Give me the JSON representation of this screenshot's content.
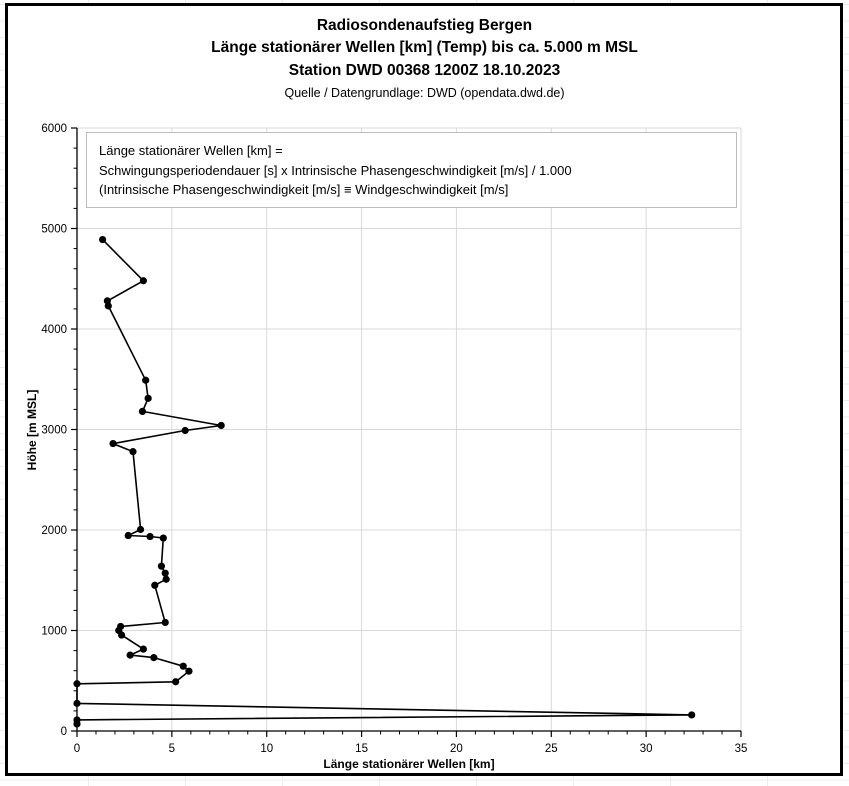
{
  "header": {
    "title_line1": "Radiosondenaufstieg Bergen",
    "title_line2": "Länge stationärer Wellen [km] (Temp) bis ca. 5.000 m MSL",
    "title_line3": "Station DWD 00368 1200Z 18.10.2023",
    "source_line": "Quelle / Datengrundlage: DWD (opendata.dwd.de)"
  },
  "annotation_box": {
    "line1": "Länge stationärer Wellen [km] =",
    "line2": "Schwingungsperiodendauer [s] x Intrinsische Phasengeschwindigkeit [m/s]  / 1.000",
    "line3": "(Intrinsische Phasengeschwindigkeit [m/s] ≡ Windgeschwindigkeit [m/s]"
  },
  "chart_data": {
    "type": "line",
    "title": "Radiosondenaufstieg Bergen — Länge stationärer Wellen [km] (Temp) bis ca. 5.000 m MSL",
    "xlabel": "Länge stationärer Wellen [km]",
    "ylabel": "Höhe [m MSL]",
    "xlim": [
      0,
      35
    ],
    "ylim": [
      0,
      6000
    ],
    "xticks": [
      0,
      5,
      10,
      15,
      20,
      25,
      30,
      35
    ],
    "yticks": [
      0,
      1000,
      2000,
      3000,
      4000,
      5000,
      6000
    ],
    "x_minor_step": 1,
    "y_minor_step": 200,
    "grid": "major",
    "legend_position": "none",
    "marker": "circle",
    "colors": {
      "line": "#000000",
      "marker": "#000000",
      "grid": "#d9d9d9",
      "axis": "#000000"
    },
    "points": [
      [
        0,
        70
      ],
      [
        0,
        110
      ],
      [
        32.4,
        160
      ],
      [
        0,
        275
      ],
      [
        0,
        470
      ],
      [
        5.2,
        490
      ],
      [
        5.9,
        595
      ],
      [
        5.6,
        645
      ],
      [
        4.05,
        730
      ],
      [
        2.8,
        755
      ],
      [
        3.5,
        815
      ],
      [
        2.35,
        955
      ],
      [
        2.2,
        1000
      ],
      [
        2.3,
        1040
      ],
      [
        4.65,
        1080
      ],
      [
        4.1,
        1450
      ],
      [
        4.7,
        1510
      ],
      [
        4.65,
        1570
      ],
      [
        4.45,
        1640
      ],
      [
        4.55,
        1920
      ],
      [
        3.85,
        1935
      ],
      [
        2.7,
        1945
      ],
      [
        3.35,
        2005
      ],
      [
        2.95,
        2780
      ],
      [
        1.9,
        2860
      ],
      [
        5.7,
        2990
      ],
      [
        7.6,
        3040
      ],
      [
        3.45,
        3180
      ],
      [
        3.75,
        3310
      ],
      [
        3.62,
        3490
      ],
      [
        1.65,
        4230
      ],
      [
        1.6,
        4280
      ],
      [
        3.5,
        4480
      ],
      [
        1.35,
        4890
      ]
    ]
  }
}
